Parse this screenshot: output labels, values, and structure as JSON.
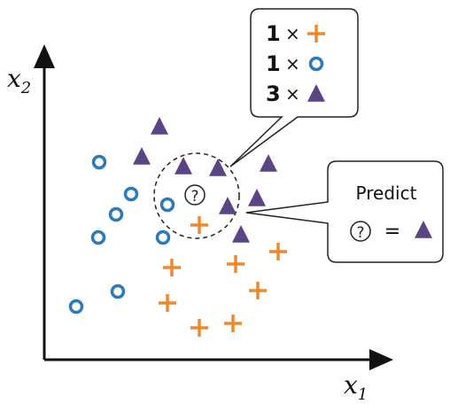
{
  "axes": {
    "x_label": "x",
    "x_sub": "1",
    "y_label": "x",
    "y_sub": "2"
  },
  "query_symbol": "?",
  "counts_box": {
    "rows": [
      {
        "count": "1",
        "times": "×",
        "class": "cross"
      },
      {
        "count": "1",
        "times": "×",
        "class": "circle"
      },
      {
        "count": "3",
        "times": "×",
        "class": "triangle"
      }
    ]
  },
  "predict_box": {
    "title": "Predict",
    "query": "?",
    "equals": "=",
    "result_class": "triangle"
  },
  "colors": {
    "circle": "#2e7ab8",
    "cross": "#ee8a2d",
    "triangle": "#5b4486",
    "axis": "#111111"
  }
}
